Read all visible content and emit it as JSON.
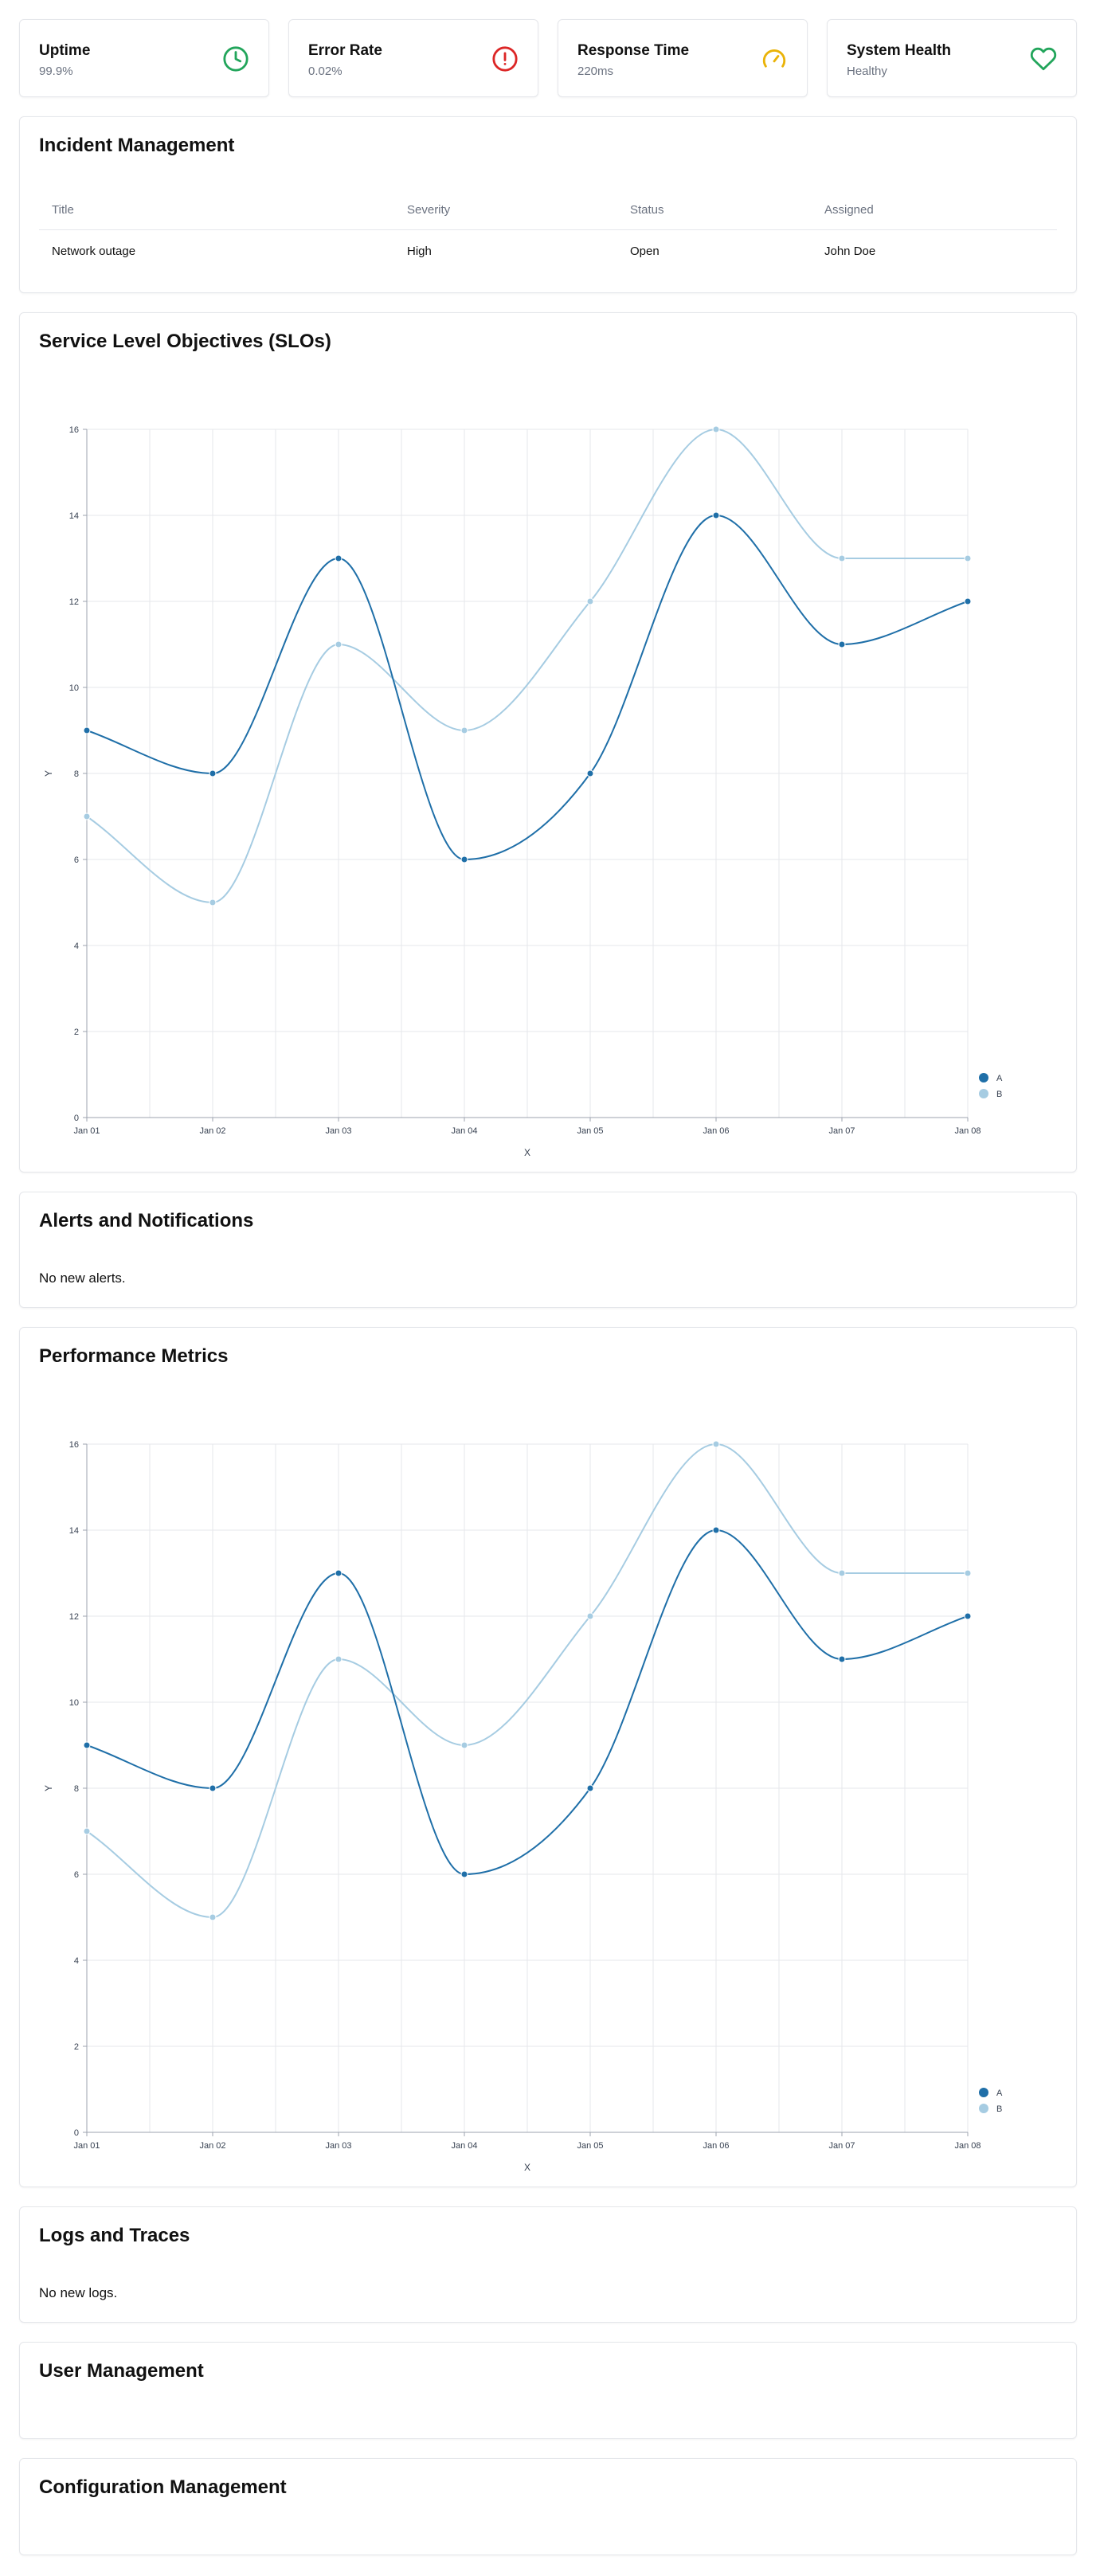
{
  "stats": [
    {
      "title": "Uptime",
      "value": "99.9%",
      "icon": "clock-icon",
      "color": "#22a55b"
    },
    {
      "title": "Error Rate",
      "value": "0.02%",
      "icon": "alert-circle-icon",
      "color": "#dc2626"
    },
    {
      "title": "Response Time",
      "value": "220ms",
      "icon": "gauge-icon",
      "color": "#eab308"
    },
    {
      "title": "System Health",
      "value": "Healthy",
      "icon": "heart-icon",
      "color": "#22a55b"
    }
  ],
  "incidents": {
    "title": "Incident Management",
    "columns": [
      "Title",
      "Severity",
      "Status",
      "Assigned"
    ],
    "rows": [
      [
        "Network outage",
        "High",
        "Open",
        "John Doe"
      ]
    ]
  },
  "slo": {
    "title": "Service Level Objectives (SLOs)"
  },
  "alerts": {
    "title": "Alerts and Notifications",
    "empty": "No new alerts."
  },
  "performance": {
    "title": "Performance Metrics"
  },
  "logs": {
    "title": "Logs and Traces",
    "empty": "No new logs."
  },
  "users": {
    "title": "User Management"
  },
  "config": {
    "title": "Configuration Management"
  },
  "chart_data": [
    {
      "type": "line",
      "x": [
        "Jan 01",
        "Jan 02",
        "Jan 03",
        "Jan 04",
        "Jan 05",
        "Jan 06",
        "Jan 07",
        "Jan 08"
      ],
      "series": [
        {
          "name": "A",
          "values": [
            9,
            8,
            13,
            6,
            8,
            14,
            11,
            12
          ],
          "color": "#1f6fa8"
        },
        {
          "name": "B",
          "values": [
            7,
            5,
            11,
            9,
            12,
            16,
            13,
            13
          ],
          "color": "#a6cce2"
        }
      ],
      "xlabel": "X",
      "ylabel": "Y",
      "ylim": [
        0,
        16
      ],
      "yticks": [
        0,
        2,
        4,
        6,
        8,
        10,
        12,
        14,
        16
      ],
      "grid": true,
      "legend": "bottom-right"
    },
    {
      "type": "line",
      "x": [
        "Jan 01",
        "Jan 02",
        "Jan 03",
        "Jan 04",
        "Jan 05",
        "Jan 06",
        "Jan 07",
        "Jan 08"
      ],
      "series": [
        {
          "name": "A",
          "values": [
            9,
            8,
            13,
            6,
            8,
            14,
            11,
            12
          ],
          "color": "#1f6fa8"
        },
        {
          "name": "B",
          "values": [
            7,
            5,
            11,
            9,
            12,
            16,
            13,
            13
          ],
          "color": "#a6cce2"
        }
      ],
      "xlabel": "X",
      "ylabel": "Y",
      "ylim": [
        0,
        16
      ],
      "yticks": [
        0,
        2,
        4,
        6,
        8,
        10,
        12,
        14,
        16
      ],
      "grid": true,
      "legend": "bottom-right"
    }
  ]
}
